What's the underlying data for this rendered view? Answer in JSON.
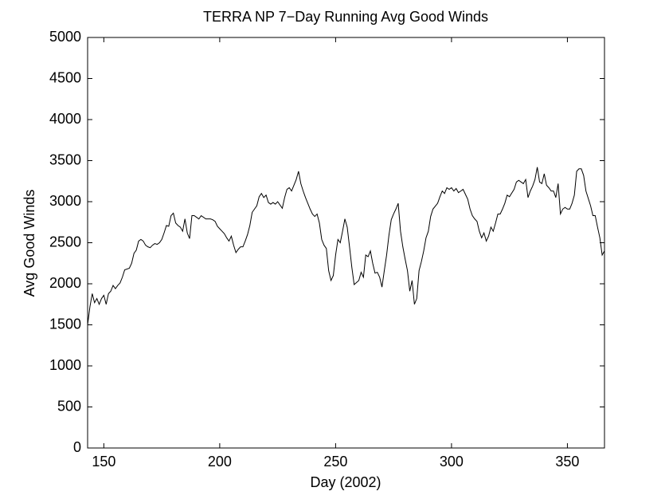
{
  "chart_data": {
    "type": "line",
    "title": "TERRA NP 7−Day Running Avg Good Winds",
    "xlabel": "Day (2002)",
    "ylabel": "Avg Good Winds",
    "xlim": [
      143,
      366
    ],
    "ylim": [
      0,
      5000
    ],
    "xticks": [
      150,
      200,
      250,
      300,
      350
    ],
    "yticks": [
      0,
      500,
      1000,
      1500,
      2000,
      2500,
      3000,
      3500,
      4000,
      4500,
      5000
    ],
    "grid": false,
    "series": [
      {
        "color": "#000000",
        "x": [
          143,
          144,
          145,
          146,
          147,
          148,
          149,
          150,
          151,
          152,
          153,
          154,
          155,
          156,
          157,
          158,
          159,
          161,
          162,
          163,
          164,
          165,
          166,
          167,
          168,
          169,
          170,
          171,
          172,
          173,
          174,
          175,
          176,
          177,
          178,
          179,
          180,
          181,
          182,
          183,
          184,
          185,
          186,
          187,
          188,
          189,
          190,
          191,
          192,
          194,
          195,
          196,
          197,
          198,
          199,
          200,
          201,
          202,
          203,
          204,
          205,
          206,
          207,
          208,
          209,
          210,
          211,
          212,
          213,
          214,
          215,
          216,
          217,
          218,
          219,
          220,
          221,
          222,
          223,
          224,
          225,
          227,
          228,
          229,
          230,
          231,
          232,
          233,
          234,
          235,
          236,
          237,
          238,
          239,
          240,
          241,
          242,
          243,
          244,
          245,
          246,
          247,
          248,
          249,
          250,
          251,
          252,
          253,
          254,
          255,
          256,
          257,
          258,
          260,
          261,
          262,
          263,
          264,
          265,
          266,
          267,
          268,
          269,
          270,
          271,
          272,
          273,
          274,
          275,
          276,
          277,
          278,
          279,
          280,
          281,
          282,
          283,
          284,
          285,
          286,
          287,
          288,
          289,
          290,
          291,
          292,
          294,
          295,
          296,
          297,
          298,
          299,
          300,
          301,
          302,
          303,
          304,
          305,
          306,
          307,
          308,
          309,
          310,
          311,
          312,
          313,
          314,
          315,
          316,
          317,
          318,
          319,
          320,
          321,
          322,
          323,
          324,
          325,
          327,
          328,
          329,
          330,
          331,
          332,
          333,
          334,
          335,
          336,
          337,
          338,
          339,
          340,
          341,
          342,
          343,
          344,
          345,
          346,
          347,
          348,
          349,
          350,
          351,
          352,
          353,
          354,
          355,
          356,
          357,
          358,
          360,
          361,
          362,
          363,
          364,
          365,
          366
        ],
        "values": [
          1500,
          1720,
          1880,
          1770,
          1820,
          1750,
          1820,
          1860,
          1750,
          1880,
          1910,
          1980,
          1940,
          1980,
          2010,
          2080,
          2170,
          2190,
          2250,
          2370,
          2410,
          2520,
          2540,
          2520,
          2470,
          2450,
          2440,
          2470,
          2490,
          2480,
          2500,
          2540,
          2620,
          2710,
          2700,
          2830,
          2860,
          2740,
          2710,
          2690,
          2640,
          2790,
          2620,
          2550,
          2830,
          2830,
          2810,
          2790,
          2830,
          2790,
          2790,
          2790,
          2780,
          2760,
          2700,
          2670,
          2640,
          2610,
          2560,
          2520,
          2580,
          2470,
          2380,
          2420,
          2450,
          2450,
          2520,
          2600,
          2710,
          2870,
          2910,
          2950,
          3060,
          3100,
          3050,
          3080,
          2990,
          2970,
          2990,
          2970,
          3000,
          2920,
          3050,
          3150,
          3170,
          3130,
          3200,
          3270,
          3370,
          3220,
          3130,
          3050,
          2980,
          2910,
          2850,
          2820,
          2850,
          2740,
          2540,
          2470,
          2430,
          2160,
          2040,
          2100,
          2350,
          2540,
          2500,
          2640,
          2790,
          2690,
          2450,
          2200,
          1990,
          2040,
          2140,
          2080,
          2350,
          2330,
          2400,
          2250,
          2130,
          2140,
          2080,
          1960,
          2160,
          2350,
          2590,
          2780,
          2850,
          2910,
          2980,
          2640,
          2450,
          2300,
          2160,
          1910,
          2040,
          1750,
          1820,
          2160,
          2270,
          2400,
          2560,
          2640,
          2820,
          2910,
          2980,
          3060,
          3130,
          3100,
          3170,
          3150,
          3170,
          3130,
          3160,
          3110,
          3130,
          3150,
          3090,
          3030,
          2910,
          2830,
          2790,
          2760,
          2640,
          2560,
          2620,
          2520,
          2580,
          2690,
          2640,
          2740,
          2850,
          2850,
          2910,
          2980,
          3080,
          3060,
          3150,
          3240,
          3260,
          3240,
          3220,
          3270,
          3050,
          3130,
          3190,
          3270,
          3420,
          3240,
          3220,
          3340,
          3200,
          3170,
          3130,
          3130,
          3050,
          3220,
          2850,
          2910,
          2930,
          2910,
          2910,
          2980,
          3080,
          3370,
          3400,
          3400,
          3320,
          3130,
          2950,
          2830,
          2830,
          2690,
          2560,
          2350,
          2400
        ]
      }
    ]
  }
}
